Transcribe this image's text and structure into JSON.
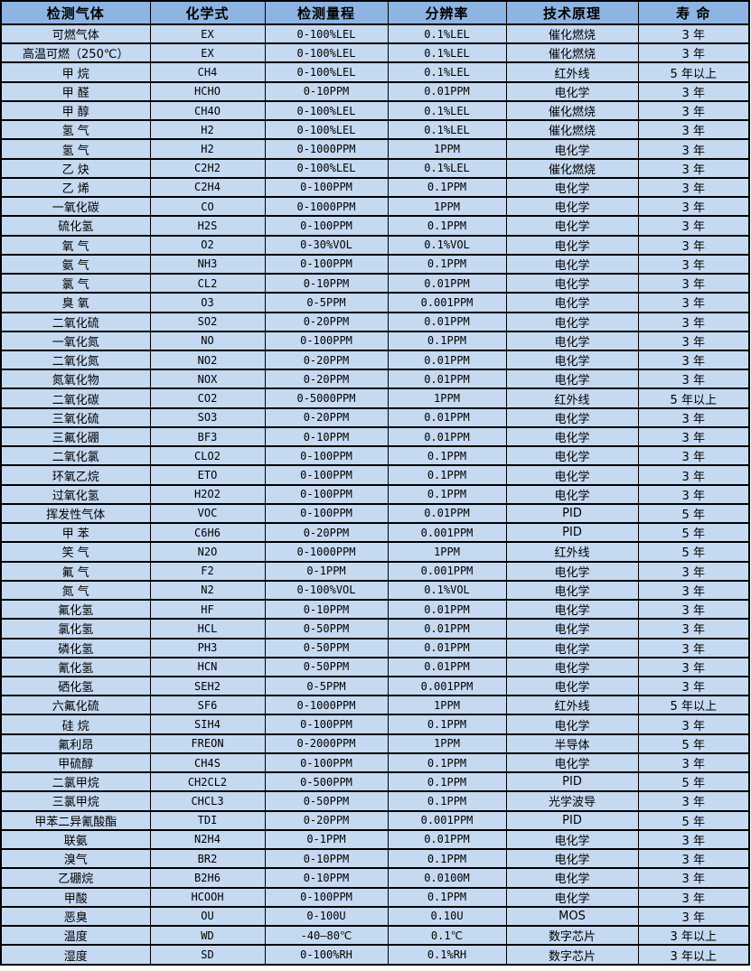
{
  "colors": {
    "header_bg": "#8db4e2",
    "row_bg": "#c5d9f1",
    "grid_border": "#000000",
    "text": "#000000",
    "page_bg": "#ffffff"
  },
  "chart_data": {
    "type": "table",
    "title": "",
    "columns": [
      "检测气体",
      "化学式",
      "检测量程",
      "分辨率",
      "技术原理",
      "寿 命"
    ],
    "rows": [
      [
        "可燃气体",
        "EX",
        "0-100%LEL",
        "0.1%LEL",
        "催化燃烧",
        "3 年"
      ],
      [
        "高温可燃（250℃）",
        "EX",
        "0-100%LEL",
        "0.1%LEL",
        "催化燃烧",
        "3 年"
      ],
      [
        "甲 烷",
        "CH4",
        "0-100%LEL",
        "0.1%LEL",
        "红外线",
        "5 年以上"
      ],
      [
        "甲 醛",
        "HCHO",
        "0-10PPM",
        "0.01PPM",
        "电化学",
        "3 年"
      ],
      [
        "甲 醇",
        "CH4O",
        "0-100%LEL",
        "0.1%LEL",
        "催化燃烧",
        "3 年"
      ],
      [
        "氢 气",
        "H2",
        "0-100%LEL",
        "0.1%LEL",
        "催化燃烧",
        "3 年"
      ],
      [
        "氢 气",
        "H2",
        "0-1000PPM",
        "1PPM",
        "电化学",
        "3 年"
      ],
      [
        "乙 炔",
        "C2H2",
        "0-100%LEL",
        "0.1%LEL",
        "催化燃烧",
        "3 年"
      ],
      [
        "乙 烯",
        "C2H4",
        "0-100PPM",
        "0.1PPM",
        "电化学",
        "3 年"
      ],
      [
        "一氧化碳",
        "CO",
        "0-1000PPM",
        "1PPM",
        "电化学",
        "3 年"
      ],
      [
        "硫化氢",
        "H2S",
        "0-100PPM",
        "0.1PPM",
        "电化学",
        "3 年"
      ],
      [
        "氧 气",
        "O2",
        "0-30%VOL",
        "0.1%VOL",
        "电化学",
        "3 年"
      ],
      [
        "氨 气",
        "NH3",
        "0-100PPM",
        "0.1PPM",
        "电化学",
        "3 年"
      ],
      [
        "氯 气",
        "CL2",
        "0-10PPM",
        "0.01PPM",
        "电化学",
        "3 年"
      ],
      [
        "臭 氧",
        "O3",
        "0-5PPM",
        "0.001PPM",
        "电化学",
        "3 年"
      ],
      [
        "二氧化硫",
        "SO2",
        "0-20PPM",
        "0.01PPM",
        "电化学",
        "3 年"
      ],
      [
        "一氧化氮",
        "NO",
        "0-100PPM",
        "0.1PPM",
        "电化学",
        "3 年"
      ],
      [
        "二氧化氮",
        "NO2",
        "0-20PPM",
        "0.01PPM",
        "电化学",
        "3 年"
      ],
      [
        "氮氧化物",
        "NOX",
        "0-20PPM",
        "0.01PPM",
        "电化学",
        "3 年"
      ],
      [
        "二氧化碳",
        "CO2",
        "0-5000PPM",
        "1PPM",
        "红外线",
        "5 年以上"
      ],
      [
        "三氧化硫",
        "SO3",
        "0-20PPM",
        "0.01PPM",
        "电化学",
        "3 年"
      ],
      [
        "三氟化硼",
        "BF3",
        "0-10PPM",
        "0.01PPM",
        "电化学",
        "3 年"
      ],
      [
        "二氧化氯",
        "CLO2",
        "0-100PPM",
        "0.1PPM",
        "电化学",
        "3 年"
      ],
      [
        "环氧乙烷",
        "ETO",
        "0-100PPM",
        "0.1PPM",
        "电化学",
        "3 年"
      ],
      [
        "过氧化氢",
        "H2O2",
        "0-100PPM",
        "0.1PPM",
        "电化学",
        "3 年"
      ],
      [
        "挥发性气体",
        "VOC",
        "0-100PPM",
        "0.01PPM",
        "PID",
        "5 年"
      ],
      [
        "甲 苯",
        "C6H6",
        "0-20PPM",
        "0.001PPM",
        "PID",
        "5 年"
      ],
      [
        "笑 气",
        "N2O",
        "0-1000PPM",
        "1PPM",
        "红外线",
        "5 年"
      ],
      [
        "氟 气",
        "F2",
        "0-1PPM",
        "0.001PPM",
        "电化学",
        "3 年"
      ],
      [
        "氮 气",
        "N2",
        "0-100%VOL",
        "0.1%VOL",
        "电化学",
        "3 年"
      ],
      [
        "氟化氢",
        "HF",
        "0-10PPM",
        "0.01PPM",
        "电化学",
        "3 年"
      ],
      [
        "氯化氢",
        "HCL",
        "0-50PPM",
        "0.01PPM",
        "电化学",
        "3 年"
      ],
      [
        "磷化氢",
        "PH3",
        "0-50PPM",
        "0.01PPM",
        "电化学",
        "3 年"
      ],
      [
        "氰化氢",
        "HCN",
        "0-50PPM",
        "0.01PPM",
        "电化学",
        "3 年"
      ],
      [
        "硒化氢",
        "SEH2",
        "0-5PPM",
        "0.001PPM",
        "电化学",
        "3 年"
      ],
      [
        "六氟化硫",
        "SF6",
        "0-1000PPM",
        "1PPM",
        "红外线",
        "5 年以上"
      ],
      [
        "硅 烷",
        "SIH4",
        "0-100PPM",
        "0.1PPM",
        "电化学",
        "3 年"
      ],
      [
        "氟利昂",
        "FREON",
        "0-2000PPM",
        "1PPM",
        "半导体",
        "5 年"
      ],
      [
        "甲硫醇",
        "CH4S",
        "0-100PPM",
        "0.1PPM",
        "电化学",
        "3 年"
      ],
      [
        "二氯甲烷",
        "CH2CL2",
        "0-500PPM",
        "0.1PPM",
        "PID",
        "5 年"
      ],
      [
        "三氯甲烷",
        "CHCL3",
        "0-50PPM",
        "0.1PPM",
        "光学波导",
        "3 年"
      ],
      [
        "甲苯二异氰酸酯",
        "TDI",
        "0-20PPM",
        "0.001PPM",
        "PID",
        "5 年"
      ],
      [
        "联氨",
        "N2H4",
        "0-1PPM",
        "0.01PPM",
        "电化学",
        "3 年"
      ],
      [
        "溴气",
        "BR2",
        "0-10PPM",
        "0.1PPM",
        "电化学",
        "3 年"
      ],
      [
        "乙硼烷",
        "B2H6",
        "0-10PPM",
        "0.0100M",
        "电化学",
        "3 年"
      ],
      [
        "甲酸",
        "HCOOH",
        "0-100PPM",
        "0.1PPM",
        "电化学",
        "3 年"
      ],
      [
        "恶臭",
        "OU",
        "0-100U",
        "0.10U",
        "MOS",
        "3 年"
      ],
      [
        "温度",
        "WD",
        "-40—80℃",
        "0.1℃",
        "数字芯片",
        "3 年以上"
      ],
      [
        "湿度",
        "SD",
        "0-100%RH",
        "0.1%RH",
        "数字芯片",
        "3 年以上"
      ]
    ]
  }
}
